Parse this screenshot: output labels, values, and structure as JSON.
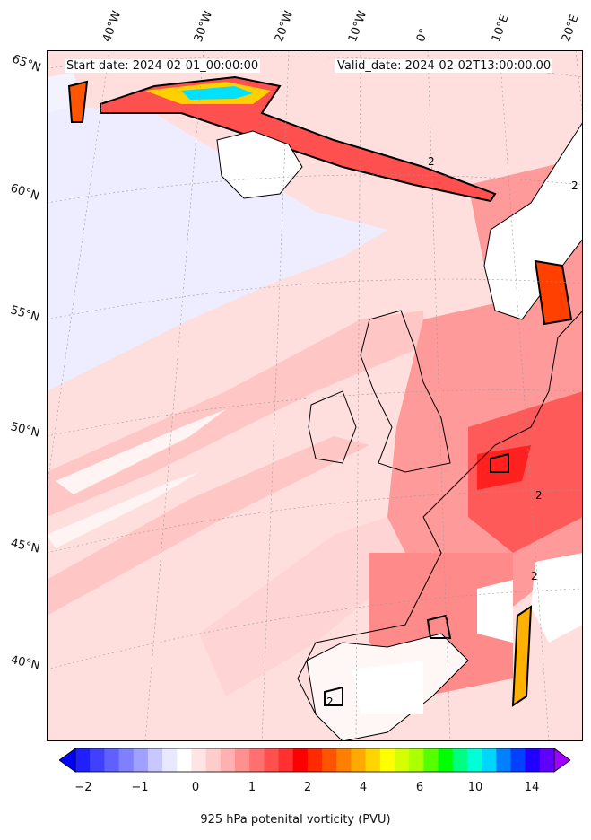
{
  "map": {
    "start_label": "Start date: 2024-02-01_00:00:00",
    "valid_label": "Valid_date: 2024-02-02T13:00:00.00",
    "lat_labels": [
      "65°N",
      "60°N",
      "55°N",
      "50°N",
      "45°N",
      "40°N"
    ],
    "lon_labels": [
      "40°W",
      "30°W",
      "20°W",
      "10°W",
      "0°",
      "10°E",
      "20°E"
    ],
    "contour_labels": [
      "2",
      "2",
      "2",
      "2",
      "2"
    ]
  },
  "colorbar": {
    "label": "925 hPa potenital vorticity (PVU)",
    "ticks": [
      "−2",
      "−1",
      "0",
      "1",
      "2",
      "4",
      "6",
      "10",
      "14"
    ],
    "colors": [
      "#0000ff",
      "#2020ff",
      "#4040ff",
      "#6060ff",
      "#8080ff",
      "#a0a0ff",
      "#c8c8ff",
      "#e8e8ff",
      "#ffffff",
      "#ffe4e4",
      "#ffcccc",
      "#ffb0b0",
      "#ff9090",
      "#ff7070",
      "#ff5050",
      "#ff3030",
      "#ff0000",
      "#ff2a00",
      "#ff5500",
      "#ff8000",
      "#ffaa00",
      "#ffd500",
      "#ffff00",
      "#d5ff00",
      "#aaff00",
      "#55ff00",
      "#00ff00",
      "#00ff80",
      "#00ffd5",
      "#00d5ff",
      "#0080ff",
      "#0040ff",
      "#2000ff",
      "#6000ff",
      "#a000ff"
    ]
  }
}
